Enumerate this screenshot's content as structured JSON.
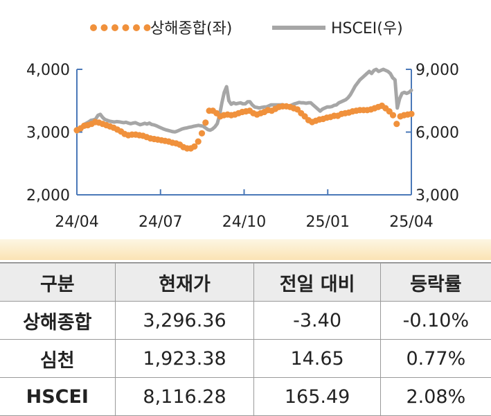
{
  "chart_data": {
    "type": "line",
    "x_ticks": [
      "24/04",
      "24/07",
      "24/10",
      "25/01",
      "25/04"
    ],
    "y_left": {
      "ticks": [
        "2,000",
        "3,000",
        "4,000"
      ],
      "range": [
        2000,
        4000
      ]
    },
    "y_right": {
      "ticks": [
        "3,000",
        "6,000",
        "9,000"
      ],
      "range": [
        3000,
        9000
      ]
    },
    "legend": {
      "position": "top"
    },
    "series": [
      {
        "name": "상해종합(좌)",
        "axis": "left",
        "style": "dotted",
        "color": "#f0913c",
        "values": [
          3030,
          3060,
          3100,
          3110,
          3130,
          3160,
          3150,
          3130,
          3110,
          3090,
          3070,
          3040,
          3010,
          2970,
          2950,
          2960,
          2960,
          2950,
          2940,
          2920,
          2900,
          2890,
          2880,
          2870,
          2860,
          2850,
          2830,
          2820,
          2800,
          2760,
          2740,
          2740,
          2770,
          2850,
          2980,
          3150,
          3340,
          3340,
          3300,
          3250,
          3270,
          3280,
          3270,
          3280,
          3300,
          3320,
          3330,
          3340,
          3300,
          3280,
          3300,
          3320,
          3350,
          3340,
          3370,
          3400,
          3410,
          3410,
          3400,
          3380,
          3360,
          3300,
          3250,
          3190,
          3160,
          3180,
          3200,
          3210,
          3230,
          3240,
          3260,
          3260,
          3290,
          3300,
          3310,
          3330,
          3340,
          3350,
          3350,
          3350,
          3360,
          3380,
          3400,
          3420,
          3380,
          3330,
          3270,
          3130,
          3250,
          3270,
          3280,
          3290
        ]
      },
      {
        "name": "HSCEI(우)",
        "axis": "right",
        "style": "solid",
        "color": "#a6a6a6",
        "values": [
          6000,
          6100,
          6250,
          6350,
          6420,
          6480,
          6560,
          6580,
          6620,
          6800,
          6850,
          6700,
          6600,
          6560,
          6520,
          6500,
          6480,
          6500,
          6490,
          6470,
          6450,
          6470,
          6430,
          6400,
          6430,
          6450,
          6400,
          6350,
          6380,
          6420,
          6380,
          6430,
          6360,
          6340,
          6300,
          6250,
          6200,
          6150,
          6110,
          6080,
          6050,
          6020,
          6010,
          6050,
          6100,
          6150,
          6180,
          6200,
          6230,
          6250,
          6280,
          6300,
          6320,
          6300,
          6280,
          6200,
          6120,
          6090,
          6150,
          6250,
          6400,
          6800,
          7400,
          7900,
          8170,
          7500,
          7330,
          7400,
          7350,
          7380,
          7400,
          7350,
          7350,
          7450,
          7450,
          7300,
          7200,
          7180,
          7150,
          7180,
          7200,
          7200,
          7250,
          7300,
          7300,
          7300,
          7300,
          7300,
          7310,
          7250,
          7200,
          7250,
          7300,
          7350,
          7380,
          7420,
          7400,
          7400,
          7380,
          7400,
          7400,
          7300,
          7200,
          7100,
          7000,
          7100,
          7150,
          7200,
          7200,
          7220,
          7280,
          7300,
          7400,
          7450,
          7500,
          7550,
          7650,
          7800,
          8000,
          8200,
          8350,
          8500,
          8600,
          8700,
          8800,
          8900,
          8800,
          8950,
          9000,
          8900,
          8950,
          9000,
          8950,
          8900,
          8800,
          8600,
          8500,
          7150,
          7600,
          7850,
          7900,
          7850,
          7900,
          8000
        ]
      }
    ]
  },
  "table": {
    "headers": [
      "구분",
      "현재가",
      "전일 대비",
      "등락률"
    ],
    "rows": [
      [
        "상해종합",
        "3,296.36",
        "-3.40",
        "-0.10%"
      ],
      [
        "심천",
        "1,923.38",
        "14.65",
        "0.77%"
      ],
      [
        "HSCEI",
        "8,116.28",
        "165.49",
        "2.08%"
      ]
    ]
  }
}
